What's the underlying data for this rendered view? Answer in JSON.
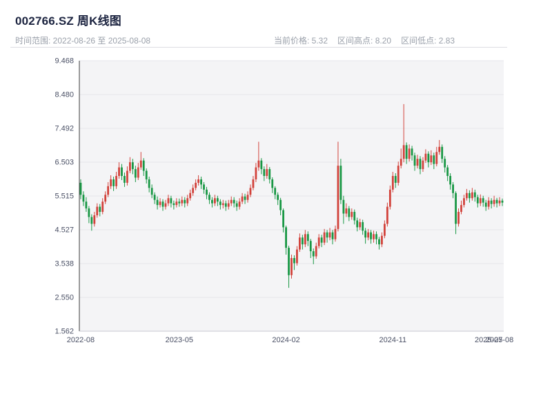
{
  "header": {
    "title": "002766.SZ 周K线图",
    "time_range": "时间范围: 2022-08-26 至 2025-08-08",
    "stats": {
      "current_price": "当前价格: 5.32",
      "range_high": "区间高点: 8.20",
      "range_low": "区间低点: 2.83"
    }
  },
  "chart_data": {
    "type": "candlestick",
    "title": "002766.SZ 周K线图",
    "symbol": "002766.SZ",
    "interval": "weekly",
    "start_date": "2022-08-26",
    "end_date": "2025-08-08",
    "current_price": 5.32,
    "range_high": 8.2,
    "range_low": 2.83,
    "xlabel": "",
    "ylabel": "",
    "ylim": [
      1.562,
      9.468
    ],
    "y_ticks": [
      1.562,
      2.55,
      3.538,
      4.527,
      5.515,
      6.503,
      7.492,
      8.48,
      9.468
    ],
    "x_ticks": [
      {
        "label": "2022-08",
        "index": 0
      },
      {
        "label": "2023-05",
        "index": 36
      },
      {
        "label": "2024-02",
        "index": 75
      },
      {
        "label": "2024-11",
        "index": 114
      },
      {
        "label": "2025-07",
        "index": 149
      },
      {
        "label": "2025-08",
        "index": 153
      }
    ],
    "legend": "none",
    "grid": true,
    "up_color": "#d2423b",
    "down_color": "#189744",
    "plot_bg": "#f4f4f6",
    "grid_color": "#e6e6eb",
    "axis_line_color": "#3a3a3a",
    "candles_format": [
      "open",
      "high",
      "low",
      "close"
    ],
    "candles": [
      [
        5.9,
        6.0,
        5.42,
        5.55
      ],
      [
        5.55,
        5.65,
        5.22,
        5.35
      ],
      [
        5.35,
        5.48,
        5.05,
        5.15
      ],
      [
        5.15,
        5.22,
        4.72,
        4.9
      ],
      [
        4.9,
        4.98,
        4.5,
        4.7
      ],
      [
        4.7,
        5.05,
        4.62,
        4.95
      ],
      [
        4.95,
        5.3,
        4.88,
        5.2
      ],
      [
        5.2,
        5.28,
        4.92,
        5.05
      ],
      [
        5.05,
        5.45,
        4.98,
        5.35
      ],
      [
        5.35,
        5.65,
        5.28,
        5.55
      ],
      [
        5.55,
        5.92,
        5.48,
        5.8
      ],
      [
        5.8,
        6.12,
        5.72,
        6.0
      ],
      [
        6.0,
        6.08,
        5.66,
        5.8
      ],
      [
        5.8,
        6.22,
        5.72,
        6.1
      ],
      [
        6.1,
        6.5,
        6.02,
        6.35
      ],
      [
        6.35,
        6.45,
        5.98,
        6.1
      ],
      [
        6.1,
        6.2,
        5.78,
        5.9
      ],
      [
        5.9,
        6.38,
        5.82,
        6.25
      ],
      [
        6.25,
        6.65,
        6.18,
        6.5
      ],
      [
        6.5,
        6.6,
        6.15,
        6.3
      ],
      [
        6.3,
        6.4,
        5.92,
        6.05
      ],
      [
        6.05,
        6.48,
        5.98,
        6.35
      ],
      [
        6.35,
        6.8,
        6.28,
        6.55
      ],
      [
        6.55,
        6.62,
        6.1,
        6.25
      ],
      [
        6.25,
        6.32,
        5.88,
        6.0
      ],
      [
        6.0,
        6.08,
        5.62,
        5.75
      ],
      [
        5.75,
        5.85,
        5.45,
        5.55
      ],
      [
        5.55,
        5.62,
        5.28,
        5.4
      ],
      [
        5.4,
        5.5,
        5.12,
        5.25
      ],
      [
        5.25,
        5.45,
        5.18,
        5.35
      ],
      [
        5.35,
        5.42,
        5.08,
        5.2
      ],
      [
        5.2,
        5.4,
        5.12,
        5.3
      ],
      [
        5.3,
        5.55,
        5.22,
        5.45
      ],
      [
        5.45,
        5.52,
        5.18,
        5.3
      ],
      [
        5.3,
        5.38,
        5.12,
        5.25
      ],
      [
        5.25,
        5.45,
        5.18,
        5.35
      ],
      [
        5.35,
        5.44,
        5.2,
        5.3
      ],
      [
        5.3,
        5.5,
        5.22,
        5.4
      ],
      [
        5.4,
        5.48,
        5.18,
        5.3
      ],
      [
        5.3,
        5.55,
        5.22,
        5.45
      ],
      [
        5.45,
        5.7,
        5.38,
        5.6
      ],
      [
        5.6,
        5.85,
        5.52,
        5.75
      ],
      [
        5.75,
        6.0,
        5.68,
        5.9
      ],
      [
        5.9,
        6.12,
        5.82,
        6.0
      ],
      [
        6.0,
        6.08,
        5.72,
        5.85
      ],
      [
        5.85,
        5.92,
        5.58,
        5.7
      ],
      [
        5.7,
        5.78,
        5.42,
        5.55
      ],
      [
        5.55,
        5.62,
        5.28,
        5.4
      ],
      [
        5.4,
        5.48,
        5.18,
        5.3
      ],
      [
        5.3,
        5.55,
        5.22,
        5.45
      ],
      [
        5.45,
        5.52,
        5.22,
        5.35
      ],
      [
        5.35,
        5.42,
        5.12,
        5.25
      ],
      [
        5.25,
        5.4,
        5.15,
        5.3
      ],
      [
        5.3,
        5.38,
        5.08,
        5.2
      ],
      [
        5.2,
        5.4,
        5.12,
        5.3
      ],
      [
        5.3,
        5.5,
        5.22,
        5.4
      ],
      [
        5.4,
        5.48,
        5.18,
        5.3
      ],
      [
        5.3,
        5.38,
        5.08,
        5.2
      ],
      [
        5.2,
        5.45,
        5.12,
        5.35
      ],
      [
        5.35,
        5.6,
        5.28,
        5.5
      ],
      [
        5.5,
        5.58,
        5.28,
        5.4
      ],
      [
        5.4,
        5.65,
        5.32,
        5.55
      ],
      [
        5.55,
        5.85,
        5.48,
        5.75
      ],
      [
        5.75,
        6.1,
        5.68,
        6.0
      ],
      [
        6.0,
        6.48,
        5.92,
        6.35
      ],
      [
        6.35,
        7.1,
        6.25,
        6.55
      ],
      [
        6.55,
        6.62,
        6.15,
        6.3
      ],
      [
        6.3,
        6.38,
        5.95,
        6.1
      ],
      [
        6.1,
        6.45,
        6.02,
        6.3
      ],
      [
        6.3,
        6.36,
        5.88,
        6.0
      ],
      [
        6.0,
        6.06,
        5.6,
        5.75
      ],
      [
        5.75,
        5.8,
        5.42,
        5.55
      ],
      [
        5.55,
        5.62,
        5.25,
        5.4
      ],
      [
        5.4,
        5.46,
        4.95,
        5.1
      ],
      [
        5.1,
        5.15,
        4.45,
        4.6
      ],
      [
        4.6,
        4.65,
        3.8,
        4.0
      ],
      [
        4.0,
        4.06,
        2.83,
        3.2
      ],
      [
        3.2,
        3.8,
        3.1,
        3.7
      ],
      [
        3.7,
        3.78,
        3.35,
        3.55
      ],
      [
        3.55,
        4.05,
        3.48,
        3.95
      ],
      [
        3.95,
        4.42,
        3.88,
        4.3
      ],
      [
        4.3,
        4.38,
        3.95,
        4.1
      ],
      [
        4.1,
        4.52,
        4.02,
        4.4
      ],
      [
        4.4,
        4.48,
        4.05,
        4.2
      ],
      [
        4.2,
        4.26,
        3.7,
        3.9
      ],
      [
        3.9,
        3.98,
        3.52,
        3.75
      ],
      [
        3.75,
        4.15,
        3.68,
        4.05
      ],
      [
        4.05,
        4.4,
        3.98,
        4.3
      ],
      [
        4.3,
        4.38,
        4.02,
        4.15
      ],
      [
        4.15,
        4.55,
        4.08,
        4.45
      ],
      [
        4.45,
        4.52,
        4.15,
        4.3
      ],
      [
        4.3,
        4.58,
        4.22,
        4.45
      ],
      [
        4.45,
        4.52,
        4.1,
        4.25
      ],
      [
        4.25,
        4.65,
        4.18,
        4.55
      ],
      [
        4.55,
        7.1,
        4.48,
        6.4
      ],
      [
        6.4,
        6.6,
        5.28,
        5.4
      ],
      [
        5.4,
        5.52,
        4.7,
        5.0
      ],
      [
        5.0,
        5.3,
        4.9,
        5.15
      ],
      [
        5.15,
        5.22,
        4.78,
        4.9
      ],
      [
        4.9,
        5.15,
        4.82,
        5.05
      ],
      [
        5.05,
        5.12,
        4.68,
        4.8
      ],
      [
        4.8,
        4.88,
        4.48,
        4.6
      ],
      [
        4.6,
        4.85,
        4.52,
        4.75
      ],
      [
        4.75,
        4.82,
        4.38,
        4.5
      ],
      [
        4.5,
        4.58,
        4.12,
        4.3
      ],
      [
        4.3,
        4.55,
        4.22,
        4.45
      ],
      [
        4.45,
        4.52,
        4.12,
        4.25
      ],
      [
        4.25,
        4.5,
        4.15,
        4.4
      ],
      [
        4.4,
        4.48,
        4.1,
        4.25
      ],
      [
        4.25,
        4.32,
        3.95,
        4.1
      ],
      [
        4.1,
        4.45,
        4.02,
        4.35
      ],
      [
        4.35,
        4.8,
        4.28,
        4.7
      ],
      [
        4.7,
        5.32,
        4.62,
        5.2
      ],
      [
        5.2,
        5.82,
        5.12,
        5.7
      ],
      [
        5.7,
        6.22,
        5.62,
        6.1
      ],
      [
        6.1,
        6.18,
        5.75,
        5.9
      ],
      [
        5.9,
        6.52,
        5.82,
        6.4
      ],
      [
        6.4,
        6.9,
        6.32,
        6.6
      ],
      [
        6.6,
        8.2,
        6.5,
        7.0
      ],
      [
        7.0,
        7.08,
        6.45,
        6.6
      ],
      [
        6.6,
        7.02,
        6.52,
        6.9
      ],
      [
        6.9,
        6.98,
        6.55,
        6.7
      ],
      [
        6.7,
        6.78,
        6.25,
        6.4
      ],
      [
        6.4,
        6.72,
        6.32,
        6.6
      ],
      [
        6.6,
        6.68,
        6.15,
        6.3
      ],
      [
        6.3,
        6.65,
        6.22,
        6.55
      ],
      [
        6.55,
        6.88,
        6.48,
        6.75
      ],
      [
        6.75,
        6.82,
        6.35,
        6.5
      ],
      [
        6.5,
        6.85,
        6.42,
        6.7
      ],
      [
        6.7,
        6.78,
        6.3,
        6.45
      ],
      [
        6.45,
        6.95,
        6.38,
        6.8
      ],
      [
        6.8,
        7.15,
        6.72,
        6.95
      ],
      [
        6.95,
        7.02,
        6.48,
        6.6
      ],
      [
        6.6,
        6.68,
        6.2,
        6.35
      ],
      [
        6.35,
        6.42,
        5.95,
        6.1
      ],
      [
        6.1,
        6.18,
        5.7,
        5.85
      ],
      [
        5.85,
        5.92,
        5.45,
        5.6
      ],
      [
        5.6,
        5.65,
        4.4,
        4.7
      ],
      [
        4.7,
        5.15,
        4.62,
        5.05
      ],
      [
        5.05,
        5.38,
        4.98,
        5.25
      ],
      [
        5.25,
        5.55,
        5.18,
        5.45
      ],
      [
        5.45,
        5.72,
        5.38,
        5.6
      ],
      [
        5.6,
        5.68,
        5.32,
        5.45
      ],
      [
        5.45,
        5.75,
        5.38,
        5.62
      ],
      [
        5.62,
        5.7,
        5.35,
        5.48
      ],
      [
        5.48,
        5.55,
        5.18,
        5.3
      ],
      [
        5.3,
        5.56,
        5.22,
        5.45
      ],
      [
        5.45,
        5.52,
        5.2,
        5.32
      ],
      [
        5.32,
        5.4,
        5.08,
        5.2
      ],
      [
        5.2,
        5.48,
        5.12,
        5.38
      ],
      [
        5.38,
        5.45,
        5.15,
        5.28
      ],
      [
        5.28,
        5.52,
        5.2,
        5.4
      ],
      [
        5.4,
        5.46,
        5.18,
        5.3
      ],
      [
        5.3,
        5.48,
        5.22,
        5.38
      ],
      [
        5.38,
        5.44,
        5.22,
        5.32
      ]
    ]
  }
}
